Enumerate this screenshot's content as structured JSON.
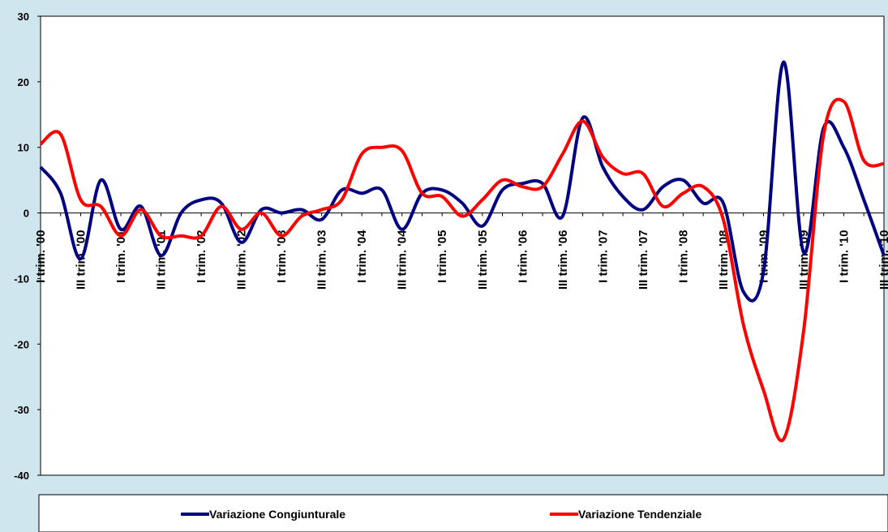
{
  "chart_data": {
    "type": "line",
    "categories": [
      "I trim. '00",
      null,
      "III trim. '00",
      null,
      "I trim. '01",
      null,
      "III trim. '01",
      null,
      "I trim. '02",
      null,
      "III trim. '02",
      null,
      "I trim. '03",
      null,
      "III trim. '03",
      null,
      "I trim. '04",
      null,
      "III trim. '04",
      null,
      "I trim. '05",
      null,
      "III trim. '05",
      null,
      "I trim. '06",
      null,
      "III trim. '06",
      null,
      "I trim. '07",
      null,
      "III trim. '07",
      null,
      "I trim. '08",
      null,
      "III trim. '08",
      null,
      "I trim. '09",
      null,
      "III trim. '09",
      null,
      "I trim. '10",
      null,
      "III trim. '10"
    ],
    "series": [
      {
        "name": "Variazione Congiunturale",
        "color": "#000080",
        "values": [
          7,
          3,
          -7,
          5,
          -2.5,
          1,
          -6.5,
          0,
          2,
          1.5,
          -4.5,
          0.5,
          0,
          0.5,
          -1,
          3.5,
          3,
          3.5,
          -2.5,
          3,
          3.5,
          1.5,
          -2,
          3.5,
          4.5,
          4.5,
          -0.5,
          14.5,
          7,
          2.5,
          0.5,
          4,
          5,
          1.5,
          1.5,
          -12,
          -9,
          23,
          -6,
          13,
          10,
          2,
          -6.5
        ]
      },
      {
        "name": "Variazione Tendenziale",
        "color": "#ff0000",
        "values": [
          10.5,
          12,
          2,
          1,
          -3.5,
          0.5,
          -3.5,
          -3.5,
          -3.5,
          1,
          -2.5,
          0,
          -3.5,
          -0.5,
          0.5,
          2,
          9,
          10,
          9.5,
          3,
          2.5,
          -0.5,
          2,
          5,
          4,
          4,
          9,
          14,
          8.5,
          6,
          6,
          1,
          3,
          4,
          -1,
          -17,
          -27,
          -34.5,
          -18,
          12,
          17,
          8,
          7.5
        ]
      }
    ],
    "ylim": [
      -40,
      30
    ],
    "yticks": [
      -40,
      -30,
      -20,
      -10,
      0,
      10,
      20,
      30
    ]
  }
}
